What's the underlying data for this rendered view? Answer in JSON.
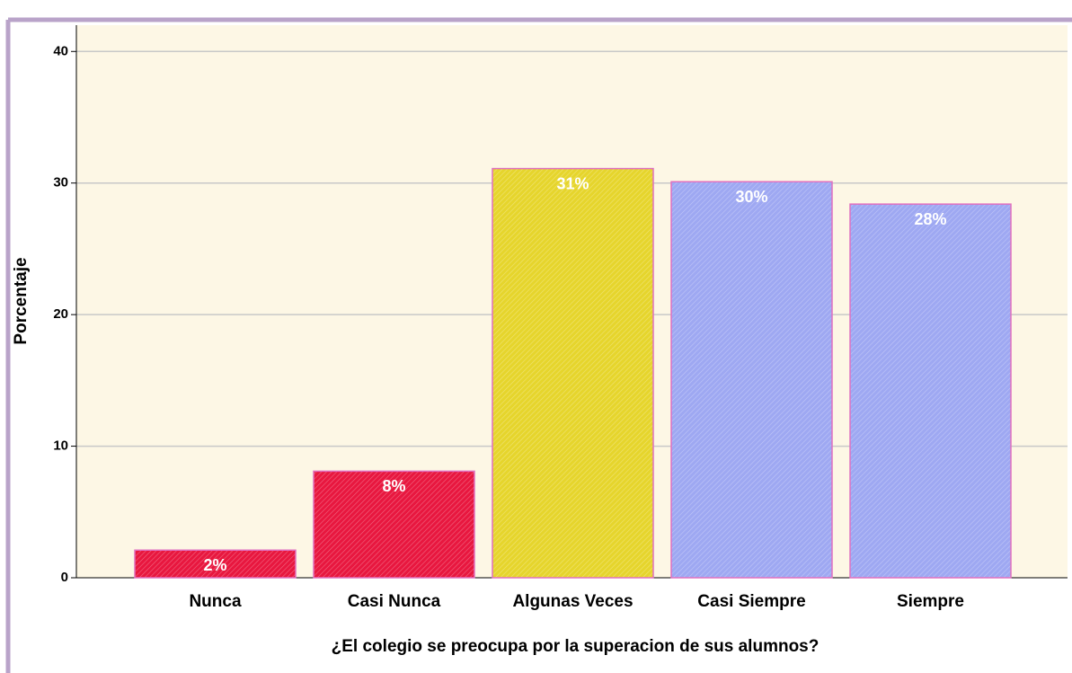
{
  "chart_data": {
    "type": "bar",
    "y_label": "Porcentaje",
    "x_label": "¿El colegio se preocupa por la superacion de sus alumnos?",
    "categories": [
      "Nunca",
      "Casi Nunca",
      "Algunas Veces",
      "Casi Siempre",
      "Siempre"
    ],
    "values": [
      2.1,
      8.1,
      31.1,
      30.1,
      28.4
    ],
    "value_labels": [
      "2%",
      "8%",
      "31%",
      "30%",
      "28%"
    ],
    "colors": [
      "#e8173f",
      "#e8173f",
      "#e6d52c",
      "#9ea8f2",
      "#9ea8f2"
    ],
    "ylim": [
      0,
      42
    ],
    "yticks": [
      0,
      10,
      20,
      30,
      40
    ],
    "grid": true
  }
}
